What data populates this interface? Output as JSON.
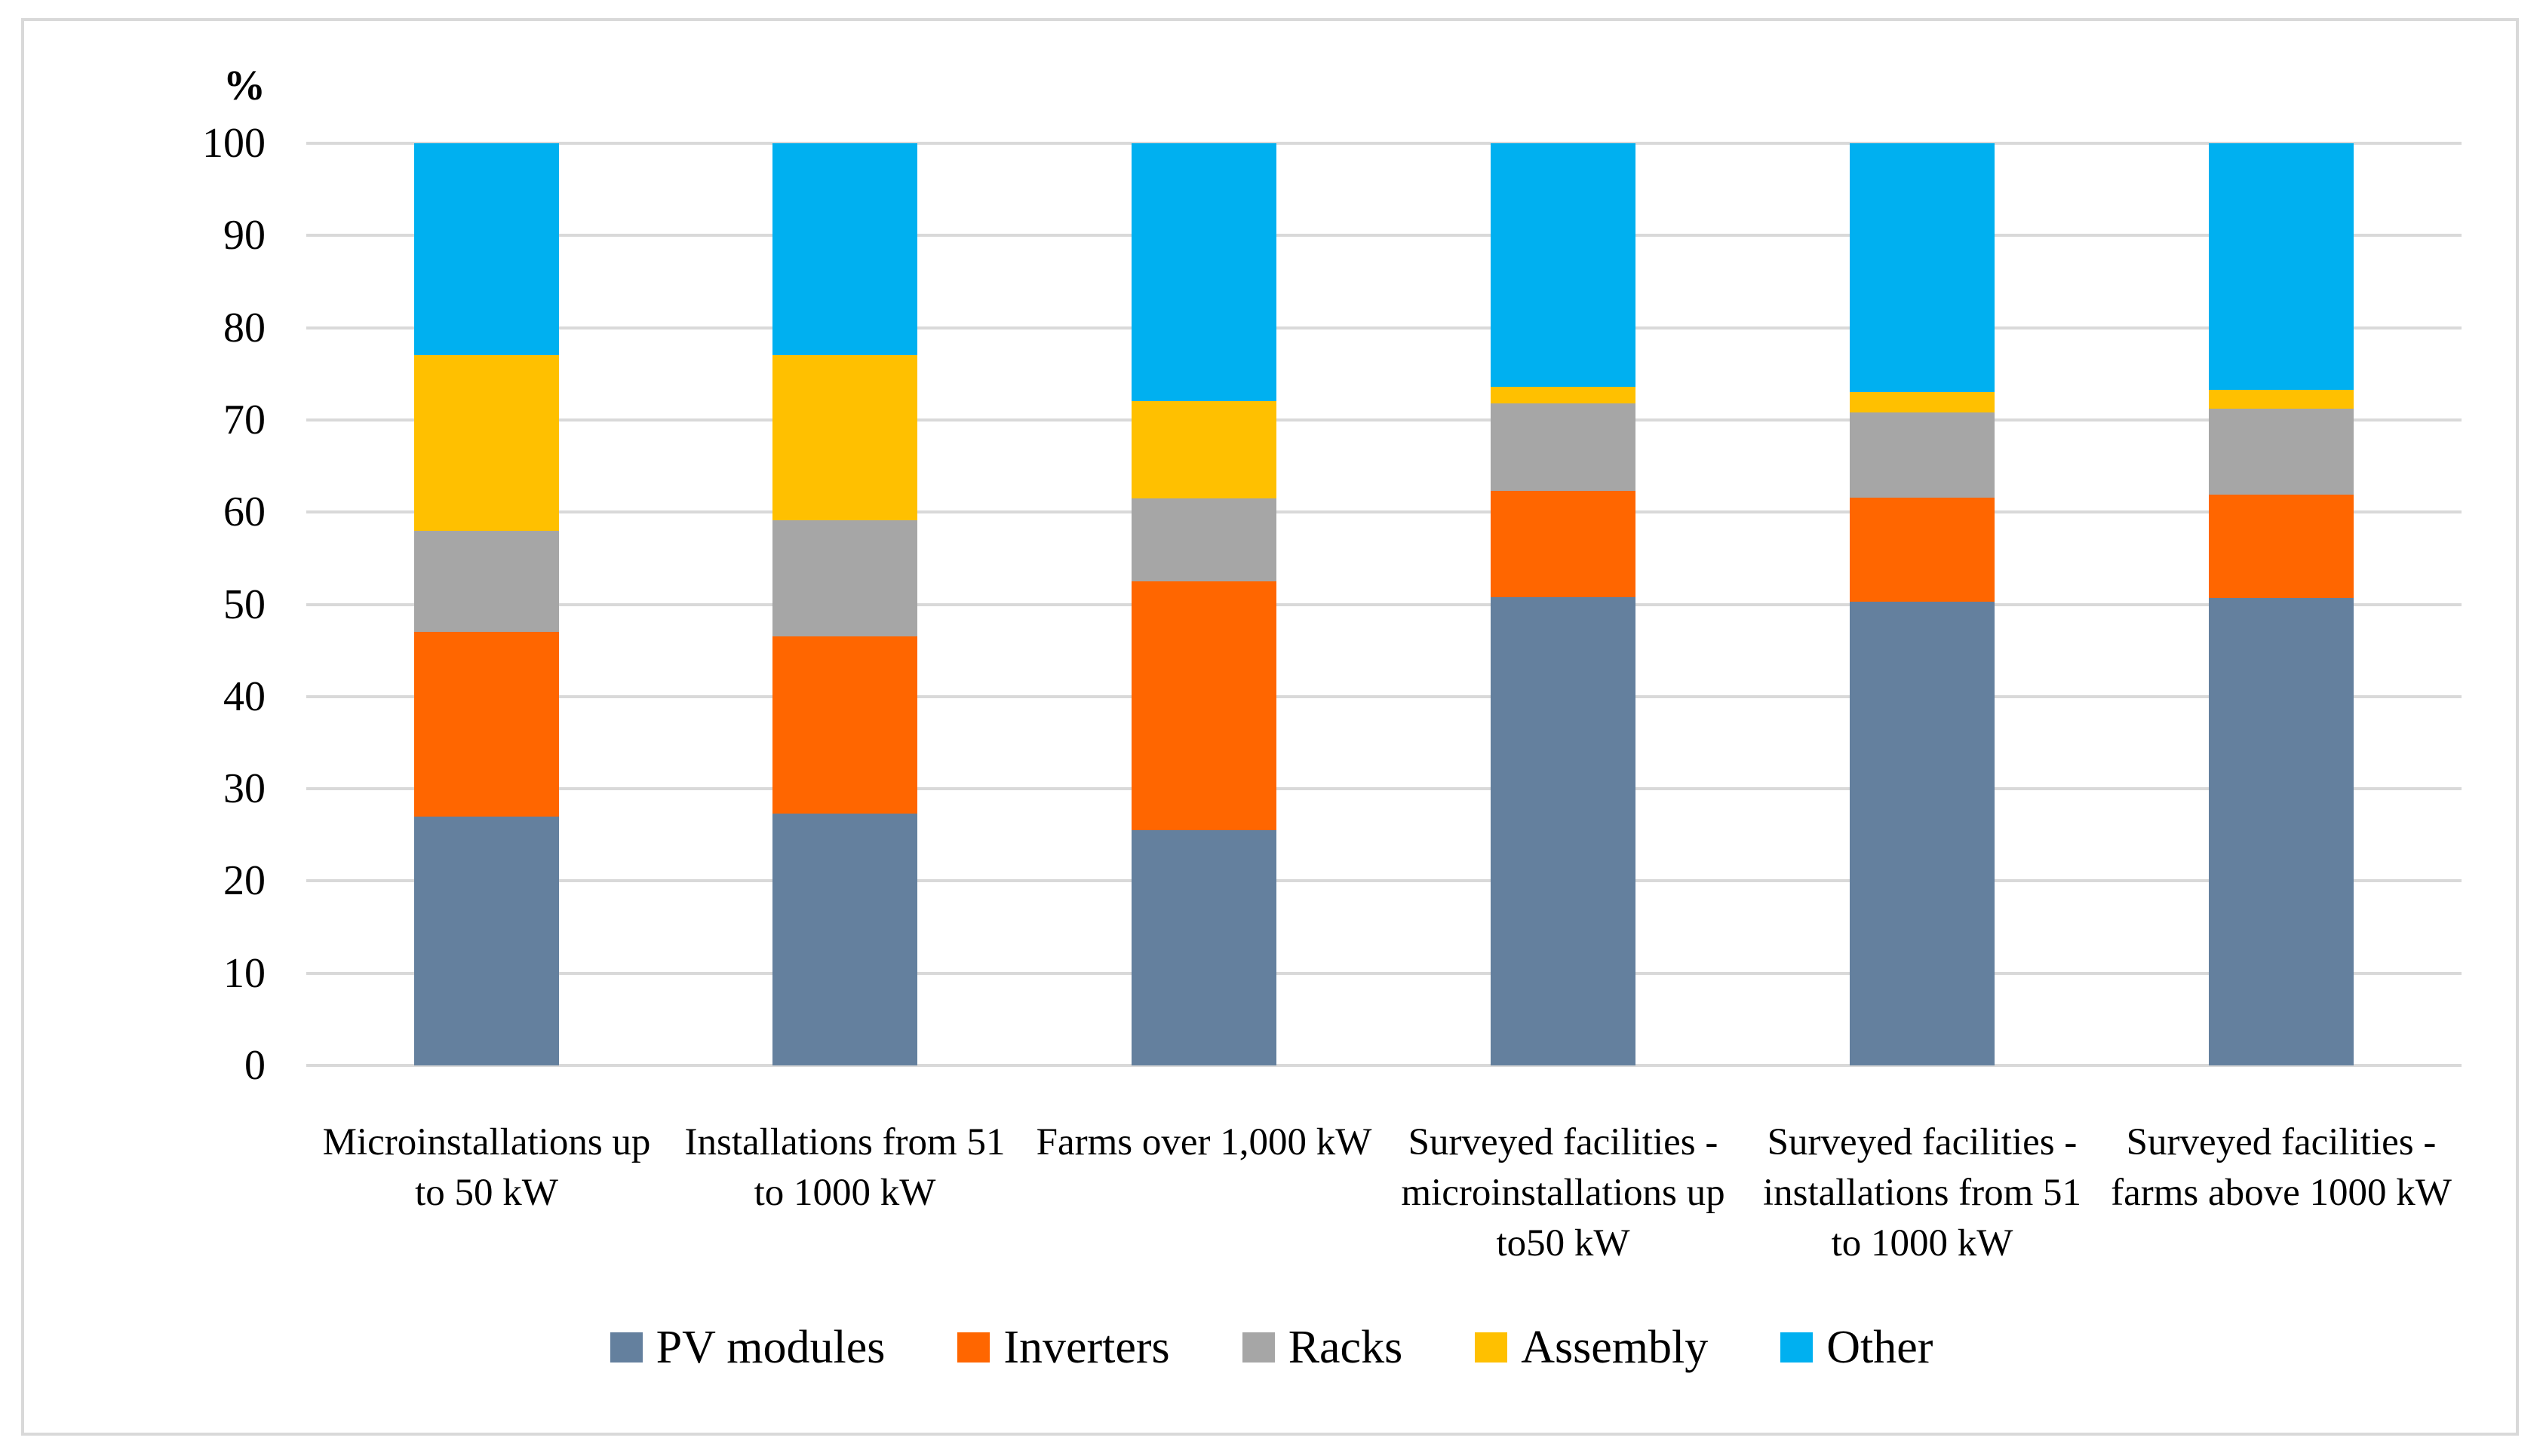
{
  "chart_data": {
    "type": "bar",
    "stacked": true,
    "title": "",
    "xlabel": "",
    "ylabel": "%",
    "ylim": [
      0,
      100
    ],
    "yticks": [
      0,
      10,
      20,
      30,
      40,
      50,
      60,
      70,
      80,
      90,
      100
    ],
    "grid": true,
    "legend_position": "bottom",
    "categories": [
      "Microinstallations up to 50 kW",
      "Installations from 51 to 1000 kW",
      "Farms over 1,000 kW",
      "Surveyed facilities - microinstallations up to50 kW",
      "Surveyed facilities - installations from 51 to 1000 kW",
      "Surveyed facilities - farms above 1000 kW"
    ],
    "categories_wrapped": [
      [
        "Microinstallations up",
        "to 50 kW"
      ],
      [
        "Installations from 51",
        "to 1000 kW"
      ],
      [
        "Farms over 1,000 kW"
      ],
      [
        "Surveyed facilities -",
        "microinstallations up",
        "to50 kW"
      ],
      [
        "Surveyed facilities -",
        "installations from 51",
        "to 1000 kW"
      ],
      [
        "Surveyed facilities -",
        "farms above 1000 kW"
      ]
    ],
    "series": [
      {
        "name": "PV modules",
        "color": "#64809E",
        "values": [
          27.0,
          27.3,
          25.5,
          50.8,
          50.3,
          50.7
        ]
      },
      {
        "name": "Inverters",
        "color": "#FF6600",
        "values": [
          20.0,
          19.2,
          27.0,
          11.5,
          11.3,
          11.2
        ]
      },
      {
        "name": "Racks",
        "color": "#A6A6A6",
        "values": [
          11.0,
          12.6,
          9.0,
          9.5,
          9.2,
          9.3
        ]
      },
      {
        "name": "Assembly",
        "color": "#FFC000",
        "values": [
          19.0,
          17.9,
          10.5,
          1.8,
          2.2,
          2.1
        ]
      },
      {
        "name": "Other",
        "color": "#00B0F0",
        "values": [
          23.0,
          23.0,
          28.0,
          26.4,
          27.0,
          26.7
        ]
      }
    ],
    "colors": {
      "gridline": "#D9D9D9",
      "figure_border": "#D9D9D9",
      "background": "#FFFFFF"
    }
  },
  "y_axis_unit_label": "%"
}
